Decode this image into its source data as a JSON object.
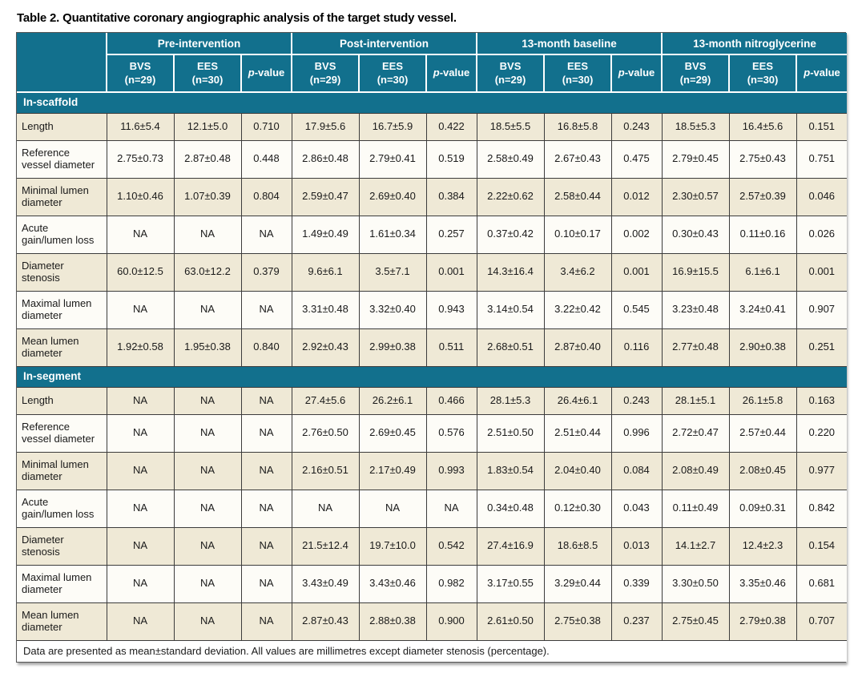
{
  "title": "Table 2. Quantitative coronary angiographic analysis of the target study vessel.",
  "footnote": "Data are presented as mean±standard deviation. All values are millimetres except diameter stenosis (percentage).",
  "colors": {
    "header_teal": "#12708D",
    "row_beige": "#EFE9D6",
    "row_white": "#FDFCF7",
    "grid_line": "#3c3c3c"
  },
  "columns": {
    "groups": [
      "Pre-intervention",
      "Post-intervention",
      "13-month baseline",
      "13-month nitroglycerine"
    ],
    "sub": [
      {
        "line1": "BVS",
        "line2": "(n=29)"
      },
      {
        "line1": "EES",
        "line2": "(n=30)"
      },
      {
        "italic": "p",
        "rest": "-value"
      }
    ]
  },
  "sections": [
    {
      "label": "In-scaffold",
      "rows": [
        {
          "label": "Length",
          "values": [
            "11.6±5.4",
            "12.1±5.0",
            "0.710",
            "17.9±5.6",
            "16.7±5.9",
            "0.422",
            "18.5±5.5",
            "16.8±5.8",
            "0.243",
            "18.5±5.3",
            "16.4±5.6",
            "0.151"
          ]
        },
        {
          "label": "Reference vessel diameter",
          "values": [
            "2.75±0.73",
            "2.87±0.48",
            "0.448",
            "2.86±0.48",
            "2.79±0.41",
            "0.519",
            "2.58±0.49",
            "2.67±0.43",
            "0.475",
            "2.79±0.45",
            "2.75±0.43",
            "0.751"
          ]
        },
        {
          "label": "Minimal lumen diameter",
          "values": [
            "1.10±0.46",
            "1.07±0.39",
            "0.804",
            "2.59±0.47",
            "2.69±0.40",
            "0.384",
            "2.22±0.62",
            "2.58±0.44",
            "0.012",
            "2.30±0.57",
            "2.57±0.39",
            "0.046"
          ]
        },
        {
          "label": "Acute gain/lumen loss",
          "values": [
            "NA",
            "NA",
            "NA",
            "1.49±0.49",
            "1.61±0.34",
            "0.257",
            "0.37±0.42",
            "0.10±0.17",
            "0.002",
            "0.30±0.43",
            "0.11±0.16",
            "0.026"
          ]
        },
        {
          "label": "Diameter stenosis",
          "values": [
            "60.0±12.5",
            "63.0±12.2",
            "0.379",
            "9.6±6.1",
            "3.5±7.1",
            "0.001",
            "14.3±16.4",
            "3.4±6.2",
            "0.001",
            "16.9±15.5",
            "6.1±6.1",
            "0.001"
          ]
        },
        {
          "label": "Maximal lumen diameter",
          "values": [
            "NA",
            "NA",
            "NA",
            "3.31±0.48",
            "3.32±0.40",
            "0.943",
            "3.14±0.54",
            "3.22±0.42",
            "0.545",
            "3.23±0.48",
            "3.24±0.41",
            "0.907"
          ]
        },
        {
          "label": "Mean lumen diameter",
          "values": [
            "1.92±0.58",
            "1.95±0.38",
            "0.840",
            "2.92±0.43",
            "2.99±0.38",
            "0.511",
            "2.68±0.51",
            "2.87±0.40",
            "0.116",
            "2.77±0.48",
            "2.90±0.38",
            "0.251"
          ]
        }
      ]
    },
    {
      "label": "In-segment",
      "rows": [
        {
          "label": "Length",
          "values": [
            "NA",
            "NA",
            "NA",
            "27.4±5.6",
            "26.2±6.1",
            "0.466",
            "28.1±5.3",
            "26.4±6.1",
            "0.243",
            "28.1±5.1",
            "26.1±5.8",
            "0.163"
          ]
        },
        {
          "label": "Reference vessel diameter",
          "values": [
            "NA",
            "NA",
            "NA",
            "2.76±0.50",
            "2.69±0.45",
            "0.576",
            "2.51±0.50",
            "2.51±0.44",
            "0.996",
            "2.72±0.47",
            "2.57±0.44",
            "0.220"
          ]
        },
        {
          "label": "Minimal lumen diameter",
          "values": [
            "NA",
            "NA",
            "NA",
            "2.16±0.51",
            "2.17±0.49",
            "0.993",
            "1.83±0.54",
            "2.04±0.40",
            "0.084",
            "2.08±0.49",
            "2.08±0.45",
            "0.977"
          ]
        },
        {
          "label": "Acute gain/lumen loss",
          "values": [
            "NA",
            "NA",
            "NA",
            "NA",
            "NA",
            "NA",
            "0.34±0.48",
            "0.12±0.30",
            "0.043",
            "0.11±0.49",
            "0.09±0.31",
            "0.842"
          ]
        },
        {
          "label": "Diameter stenosis",
          "values": [
            "NA",
            "NA",
            "NA",
            "21.5±12.4",
            "19.7±10.0",
            "0.542",
            "27.4±16.9",
            "18.6±8.5",
            "0.013",
            "14.1±2.7",
            "12.4±2.3",
            "0.154"
          ]
        },
        {
          "label": "Maximal lumen diameter",
          "values": [
            "NA",
            "NA",
            "NA",
            "3.43±0.49",
            "3.43±0.46",
            "0.982",
            "3.17±0.55",
            "3.29±0.44",
            "0.339",
            "3.30±0.50",
            "3.35±0.46",
            "0.681"
          ]
        },
        {
          "label": "Mean lumen diameter",
          "values": [
            "NA",
            "NA",
            "NA",
            "2.87±0.43",
            "2.88±0.38",
            "0.900",
            "2.61±0.50",
            "2.75±0.38",
            "0.237",
            "2.75±0.45",
            "2.79±0.38",
            "0.707"
          ]
        }
      ]
    }
  ]
}
